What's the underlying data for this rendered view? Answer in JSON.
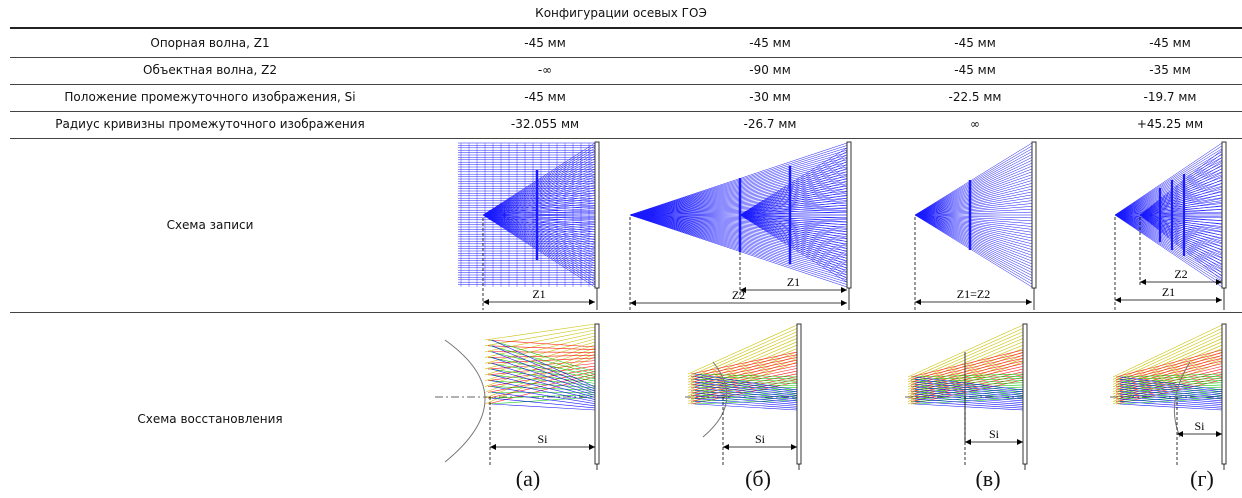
{
  "table": {
    "caption": "Конфигурации осевых ГОЭ",
    "rows": [
      {
        "label": "Опорная волна, Z1",
        "values": [
          "-45 мм",
          "-45 мм",
          "-45 мм",
          "-45 мм"
        ]
      },
      {
        "label": "Объектная волна, Z2",
        "values": [
          "-∞",
          "-90 мм",
          "-45 мм",
          "-35 мм"
        ]
      },
      {
        "label": "Положение промежуточного изображения, Si",
        "values": [
          "-45 мм",
          "-30 мм",
          "-22.5 мм",
          "-19.7 мм"
        ]
      },
      {
        "label": "Радиус кривизны промежуточного изображения",
        "values": [
          "-32.055 мм",
          "-26.7 мм",
          "∞",
          "+45.25 мм"
        ]
      }
    ],
    "recording_label": "Схема записи",
    "reconstruction_label": "Схема восстановления"
  },
  "figures": {
    "recording": [
      {
        "labels": [
          "Z1"
        ]
      },
      {
        "labels": [
          "Z2",
          "Z1"
        ]
      },
      {
        "labels": [
          "Z1=Z2"
        ]
      },
      {
        "labels": [
          "Z2",
          "Z1"
        ]
      }
    ],
    "reconstruction_label": "Si",
    "sublabels": [
      "(а)",
      "(б)",
      "(в)",
      "(г)"
    ]
  },
  "colors": {
    "recording_rays": "#1a1aff",
    "rec_yellow": "#c8c000",
    "rec_red": "#ff1a1a",
    "rec_green": "#1acc1a",
    "rec_blue": "#1a1aff"
  }
}
